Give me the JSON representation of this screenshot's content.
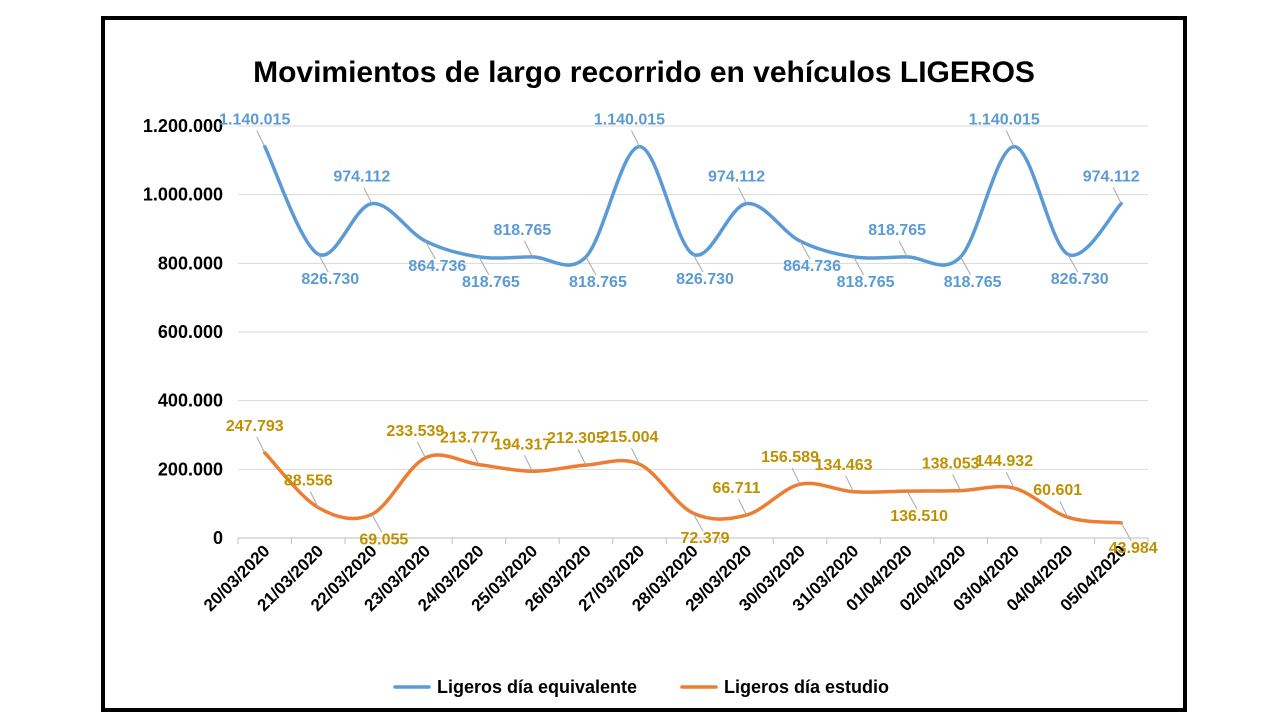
{
  "chart_data": {
    "type": "line",
    "title": "Movimientos de largo recorrido en vehículos LIGEROS",
    "categories": [
      "20/03/2020",
      "21/03/2020",
      "22/03/2020",
      "23/03/2020",
      "24/03/2020",
      "25/03/2020",
      "26/03/2020",
      "27/03/2020",
      "28/03/2020",
      "29/03/2020",
      "30/03/2020",
      "31/03/2020",
      "01/04/2020",
      "02/04/2020",
      "03/04/2020",
      "04/04/2020",
      "05/04/2020"
    ],
    "ylim": [
      0,
      1200000
    ],
    "yticks": [
      {
        "value": 0,
        "label": "0"
      },
      {
        "value": 200000,
        "label": "200.000"
      },
      {
        "value": 400000,
        "label": "400.000"
      },
      {
        "value": 600000,
        "label": "600.000"
      },
      {
        "value": 800000,
        "label": "800.000"
      },
      {
        "value": 1000000,
        "label": "1.000.000"
      },
      {
        "value": 1200000,
        "label": "1.200.000"
      }
    ],
    "grid": true,
    "legend_position": "bottom",
    "series": [
      {
        "name": "Ligeros día equivalente",
        "color": "#5B9BD5",
        "label_color": "#5B9BD5",
        "values": [
          1140015,
          826730,
          974112,
          864736,
          818765,
          818765,
          818765,
          1140015,
          826730,
          974112,
          864736,
          818765,
          818765,
          818765,
          1140015,
          826730,
          974112
        ],
        "labels": [
          "1.140.015",
          "826.730",
          "974.112",
          "864.736",
          "818.765",
          "818.765",
          "818.765",
          "1.140.015",
          "826.730",
          "974.112",
          "864.736",
          "818.765",
          "818.765",
          "818.765",
          "1.140.015",
          "826.730",
          "974.112"
        ]
      },
      {
        "name": "Ligeros día estudio",
        "color": "#ED7D31",
        "label_color": "#BF9000",
        "values": [
          247793,
          88556,
          69055,
          233539,
          213777,
          194317,
          212305,
          215004,
          72379,
          66711,
          156589,
          134463,
          136510,
          138053,
          144932,
          60601,
          43984
        ],
        "labels": [
          "247.793",
          "88.556",
          "69.055",
          "233.539",
          "213.777",
          "194.317",
          "212.305",
          "215.004",
          "72.379",
          "66.711",
          "156.589",
          "134.463",
          "136.510",
          "138.053",
          "144.932",
          "60.601",
          "43.984"
        ]
      }
    ]
  }
}
